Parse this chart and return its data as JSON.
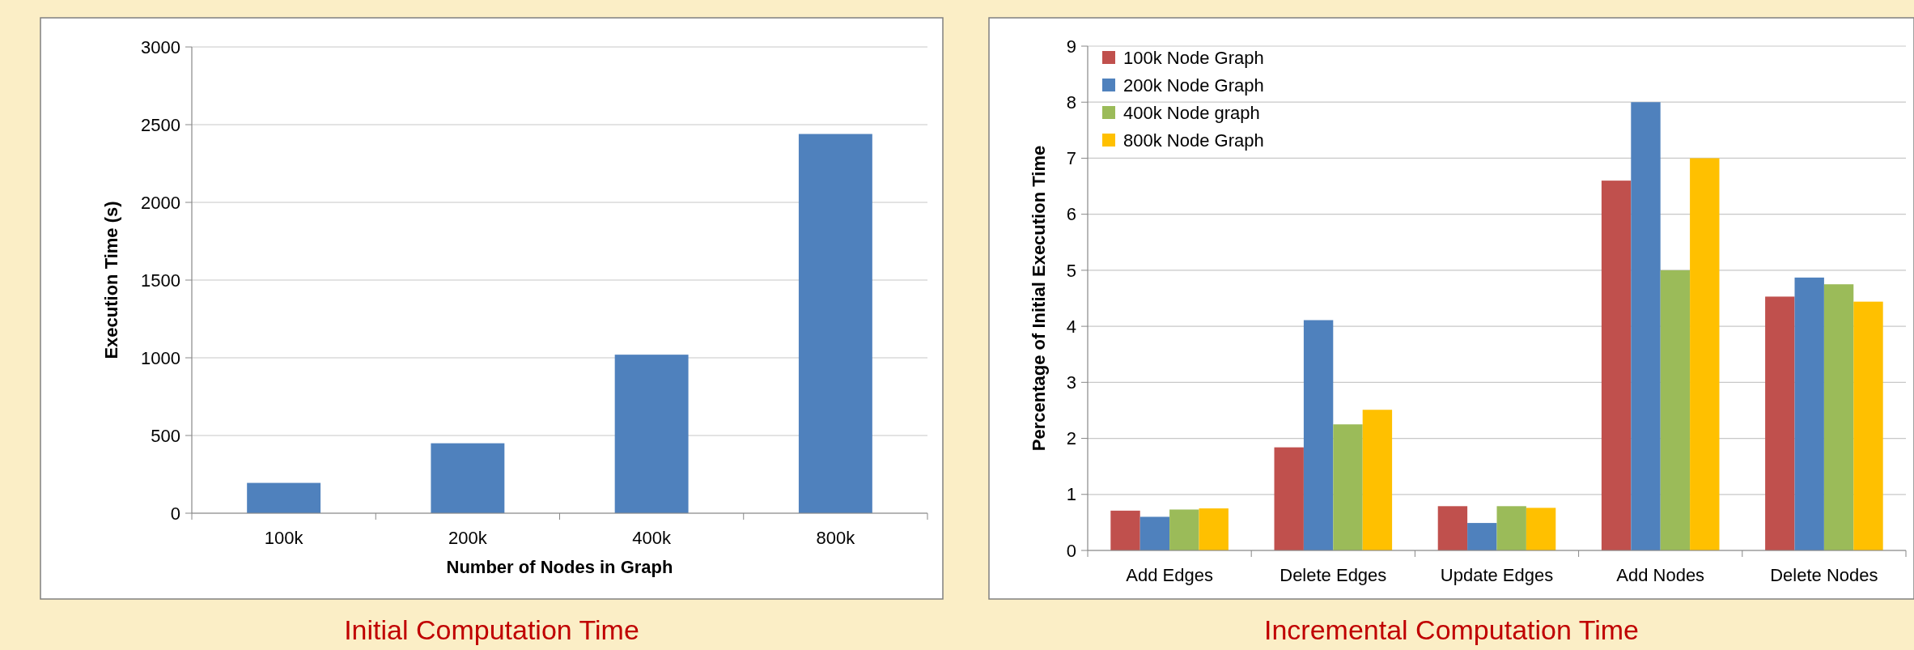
{
  "chart_data": [
    {
      "type": "bar",
      "title": "Initial Computation Time",
      "xlabel": "Number of Nodes in Graph",
      "ylabel": "Execution Time (s)",
      "categories": [
        "100k",
        "200k",
        "400k",
        "800k"
      ],
      "values": [
        195,
        450,
        1020,
        2440
      ],
      "color": "#4f81bd",
      "ylim": [
        0,
        3000
      ],
      "yticks": [
        0,
        500,
        1000,
        1500,
        2000,
        2500,
        3000
      ],
      "grid": "y",
      "legend": false
    },
    {
      "type": "bar",
      "title": "Incremental Computation Time",
      "ylabel": "Percentage of Initial Execution Time",
      "categories": [
        "Add Edges",
        "Delete Edges",
        "Update Edges",
        "Add Nodes",
        "Delete Nodes"
      ],
      "series": [
        {
          "name": "100k Node Graph",
          "color": "#c0504d",
          "values": [
            0.71,
            1.84,
            0.79,
            6.6,
            4.53
          ]
        },
        {
          "name": "200k Node Graph",
          "color": "#4f81bd",
          "values": [
            0.6,
            4.11,
            0.49,
            8.0,
            4.87
          ]
        },
        {
          "name": "400k Node graph",
          "color": "#9bbb59",
          "values": [
            0.73,
            2.25,
            0.79,
            5.0,
            4.75
          ]
        },
        {
          "name": "800k Node Graph",
          "color": "#ffc000",
          "values": [
            0.75,
            2.51,
            0.76,
            7.0,
            4.44
          ]
        }
      ],
      "ylim": [
        0,
        9
      ],
      "yticks": [
        0,
        1,
        2,
        3,
        4,
        5,
        6,
        7,
        8,
        9
      ],
      "grid": "y",
      "legend": "top left"
    }
  ]
}
